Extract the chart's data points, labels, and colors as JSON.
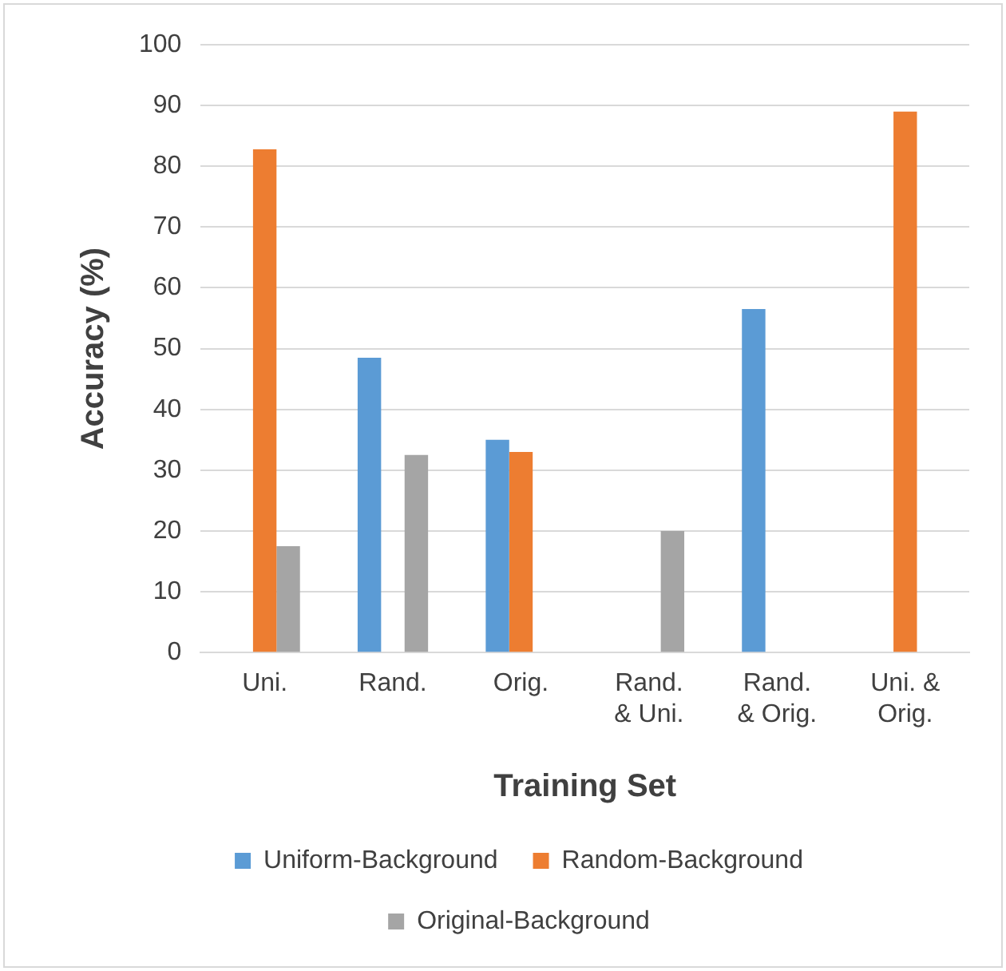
{
  "chart_data": {
    "type": "bar",
    "xlabel": "Training Set",
    "ylabel": "Accuracy (%)",
    "categories": [
      "Uni.",
      "Rand.",
      "Orig.",
      "Rand.\n& Uni.",
      "Rand.\n& Orig.",
      "Uni. &\nOrig."
    ],
    "series": [
      {
        "name": "Uniform-Background",
        "color": "#5b9bd5",
        "values": [
          null,
          48.5,
          35,
          null,
          56.5,
          null
        ]
      },
      {
        "name": "Random-Background",
        "color": "#ed7d31",
        "values": [
          82.8,
          null,
          33,
          null,
          null,
          89
        ]
      },
      {
        "name": "Original-Background",
        "color": "#a5a5a5",
        "values": [
          17.5,
          32.5,
          null,
          20,
          null,
          null
        ]
      }
    ],
    "ylim": [
      0,
      100
    ],
    "yticks": [
      0,
      10,
      20,
      30,
      40,
      50,
      60,
      70,
      80,
      90,
      100
    ],
    "grid": "y",
    "legend": "bottom"
  }
}
